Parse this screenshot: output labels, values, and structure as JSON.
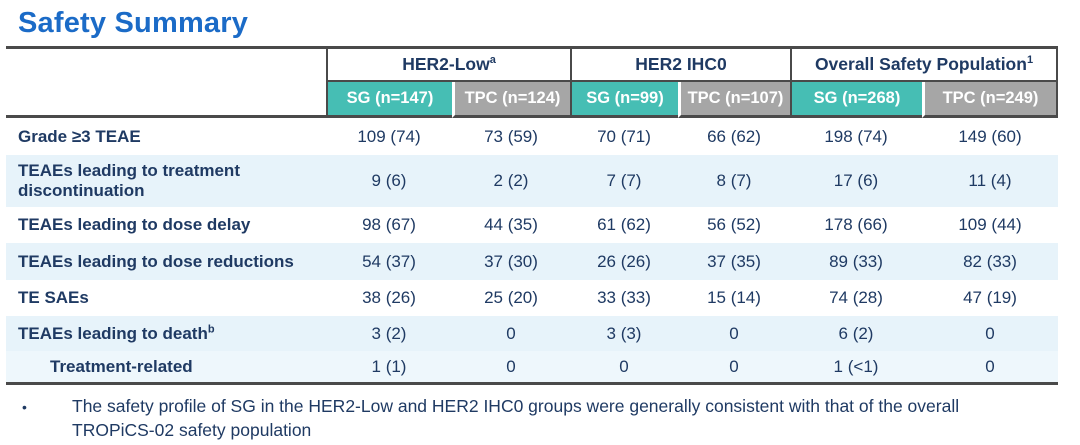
{
  "title": "Safety Summary",
  "table": {
    "groups": [
      {
        "label": "HER2-Low",
        "sup": "a"
      },
      {
        "label": "HER2 IHC0",
        "sup": ""
      },
      {
        "label": "Overall Safety Population",
        "sup": "1"
      }
    ],
    "columns": [
      {
        "label": "SG (n=147)",
        "arm": "SG"
      },
      {
        "label": "TPC (n=124)",
        "arm": "TPC"
      },
      {
        "label": "SG (n=99)",
        "arm": "SG"
      },
      {
        "label": "TPC (n=107)",
        "arm": "TPC"
      },
      {
        "label": "SG (n=268)",
        "arm": "SG"
      },
      {
        "label": "TPC (n=249)",
        "arm": "TPC"
      }
    ],
    "rows": [
      {
        "label": "Grade ≥3 TEAE",
        "sup": "",
        "indent": false,
        "values": [
          "109 (74)",
          "73 (59)",
          "70 (71)",
          "66 (62)",
          "198 (74)",
          "149 (60)"
        ]
      },
      {
        "label": "TEAEs leading to treatment discontinuation",
        "sup": "",
        "indent": false,
        "values": [
          "9 (6)",
          "2 (2)",
          "7 (7)",
          "8 (7)",
          "17 (6)",
          "11 (4)"
        ]
      },
      {
        "label": "TEAEs leading to dose delay",
        "sup": "",
        "indent": false,
        "values": [
          "98 (67)",
          "44 (35)",
          "61 (62)",
          "56 (52)",
          "178 (66)",
          "109 (44)"
        ]
      },
      {
        "label": "TEAEs leading to dose reductions",
        "sup": "",
        "indent": false,
        "values": [
          "54 (37)",
          "37 (30)",
          "26 (26)",
          "37 (35)",
          "89 (33)",
          "82 (33)"
        ]
      },
      {
        "label": "TE SAEs",
        "sup": "",
        "indent": false,
        "values": [
          "38 (26)",
          "25 (20)",
          "33 (33)",
          "15 (14)",
          "74 (28)",
          "47 (19)"
        ]
      },
      {
        "label": "TEAEs leading to death",
        "sup": "b",
        "indent": false,
        "values": [
          "3 (2)",
          "0",
          "3 (3)",
          "0",
          "6 (2)",
          "0"
        ]
      },
      {
        "label": "Treatment-related",
        "sup": "",
        "indent": true,
        "values": [
          "1 (1)",
          "0",
          "0",
          "0",
          "1 (<1)",
          "0"
        ]
      }
    ]
  },
  "footnote": {
    "bullet": "•",
    "text": "The safety profile of SG in the HER2-Low and HER2 IHC0 groups were generally consistent with that of the overall TROPiCS-02 safety population"
  },
  "colors": {
    "title_blue": "#1b6bc7",
    "text_navy": "#1f3a63",
    "sg_teal": "#46beb4",
    "tpc_gray": "#a6a6a6",
    "row_shade_blue": "#e7f3fa",
    "row_shade_light": "#eef7fc",
    "rule_dark": "#4a4a4a"
  }
}
